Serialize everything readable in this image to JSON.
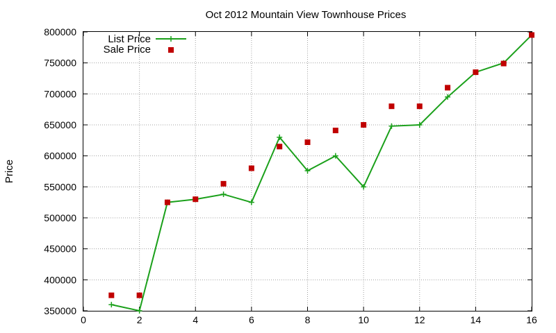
{
  "chart_data": {
    "type": "line",
    "title": "Oct 2012 Mountain View Townhouse Prices",
    "xlabel": "",
    "ylabel": "Price",
    "xlim": [
      0,
      16
    ],
    "ylim": [
      350000,
      800000
    ],
    "xticks": [
      0,
      2,
      4,
      6,
      8,
      10,
      12,
      14,
      16
    ],
    "yticks": [
      350000,
      400000,
      450000,
      500000,
      550000,
      600000,
      650000,
      700000,
      750000,
      800000
    ],
    "grid": true,
    "legend_position": "top-left",
    "series": [
      {
        "name": "List Price",
        "style": "line-with-plus",
        "color": "#1aa01a",
        "x": [
          1,
          2,
          3,
          4,
          5,
          6,
          7,
          8,
          9,
          10,
          11,
          12,
          13,
          14,
          15,
          16
        ],
        "values": [
          360000,
          350000,
          525000,
          530000,
          538000,
          525000,
          630000,
          576000,
          600000,
          550000,
          648000,
          650000,
          695000,
          735000,
          750000,
          795000
        ]
      },
      {
        "name": "Sale Price",
        "style": "square-markers",
        "color": "#c00000",
        "x": [
          1,
          2,
          3,
          4,
          5,
          6,
          7,
          8,
          9,
          10,
          11,
          12,
          13,
          14,
          15,
          16
        ],
        "values": [
          375000,
          375000,
          525000,
          530000,
          555000,
          580000,
          615000,
          622000,
          641000,
          650000,
          680000,
          680000,
          710000,
          735000,
          749000,
          795000
        ]
      }
    ]
  }
}
